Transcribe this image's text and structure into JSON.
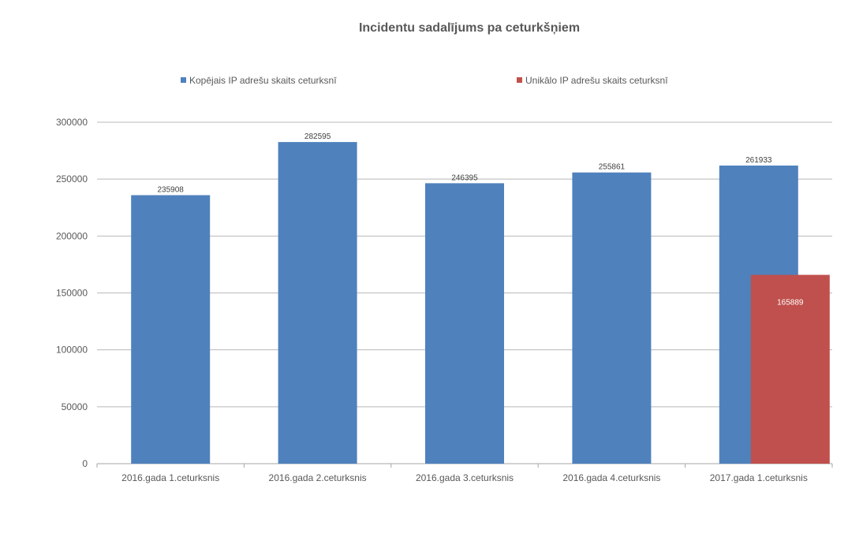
{
  "chart_data": {
    "type": "bar",
    "title": "Incidentu sadalījums pa ceturkšņiem",
    "categories": [
      "2016.gada  1.ceturksnis",
      "2016.gada  2.ceturksnis",
      "2016.gada  3.ceturksnis",
      "2016.gada  4.ceturksnis",
      "2017.gada  1.ceturksnis"
    ],
    "series": [
      {
        "name": "Kopējais IP adrešu skaits ceturksnī",
        "color": "#4F81BD",
        "values": [
          235908,
          282595,
          246395,
          255861,
          261933
        ],
        "labels": [
          "235908",
          "282595",
          "246395",
          "255861",
          "261933"
        ]
      },
      {
        "name": "Unikālo IP adrešu skaits ceturksnī",
        "color": "#C0504D",
        "values": [
          null,
          null,
          null,
          null,
          165889
        ],
        "labels": [
          "",
          "",
          "",
          "",
          "165889"
        ]
      }
    ],
    "ylim": [
      0,
      300000
    ],
    "yticks": [
      0,
      50000,
      100000,
      150000,
      200000,
      250000,
      300000
    ],
    "ytick_labels": [
      "0",
      "50000",
      "100000",
      "150000",
      "200000",
      "250000",
      "300000"
    ],
    "grid": true,
    "legend_position": "top",
    "xlabel": "",
    "ylabel": ""
  }
}
